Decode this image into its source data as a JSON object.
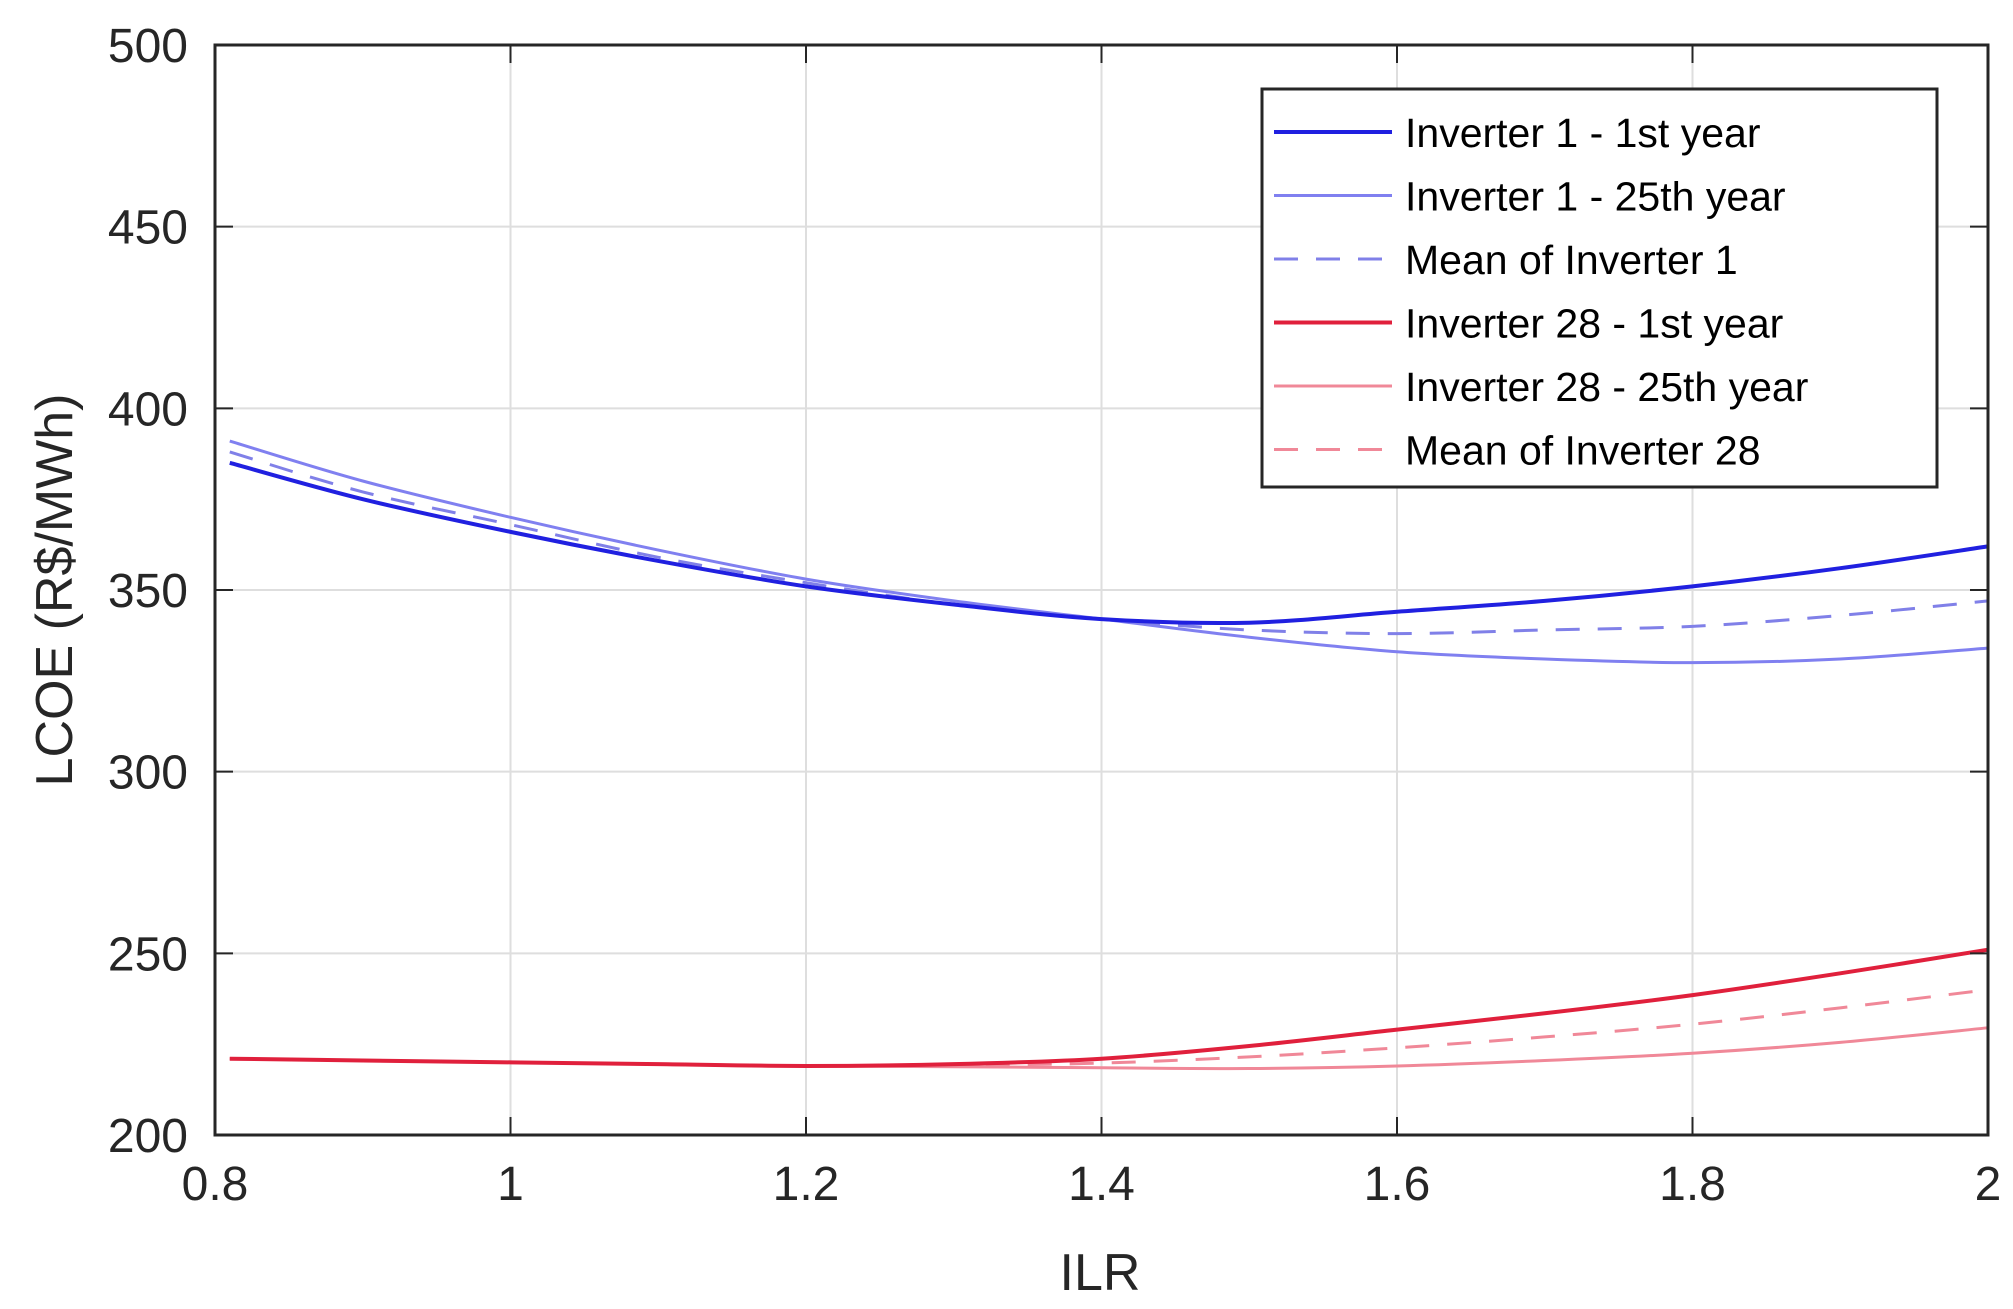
{
  "chart_data": {
    "type": "line",
    "title": "",
    "xlabel": "ILR",
    "ylabel": "LCOE (R$/MWh)",
    "xlim": [
      0.8,
      2.0
    ],
    "ylim": [
      200,
      500
    ],
    "xticks": [
      0.8,
      1.0,
      1.2,
      1.4,
      1.6,
      1.8,
      2.0
    ],
    "xtick_labels": [
      "0.8",
      "1",
      "1.2",
      "1.4",
      "1.6",
      "1.8",
      "2"
    ],
    "yticks": [
      200,
      250,
      300,
      350,
      400,
      450,
      500
    ],
    "ytick_labels": [
      "200",
      "250",
      "300",
      "350",
      "400",
      "450",
      "500"
    ],
    "grid": true,
    "legend_position": "upper right",
    "x": [
      0.81,
      0.9,
      1.0,
      1.1,
      1.2,
      1.3,
      1.4,
      1.5,
      1.6,
      1.7,
      1.8,
      1.9,
      2.0
    ],
    "series": [
      {
        "name": "Inverter 1 - 1st year",
        "color": "#2020e0",
        "style": "solid",
        "width": 4,
        "values": [
          385,
          375,
          366,
          358,
          351,
          346,
          342,
          341,
          344,
          347,
          351,
          356,
          362
        ]
      },
      {
        "name": "Inverter 1 - 25th year",
        "color": "#8080f0",
        "style": "solid",
        "width": 3,
        "values": [
          391,
          380,
          370,
          361,
          353,
          347,
          342,
          337,
          333,
          331,
          330,
          331,
          334
        ]
      },
      {
        "name": "Mean of Inverter 1",
        "color": "#8080e8",
        "style": "dashed",
        "width": 3,
        "values": [
          388,
          377,
          368,
          359,
          352,
          346,
          342,
          339,
          338,
          339,
          340,
          343,
          347
        ]
      },
      {
        "name": "Inverter 28 - 1st year",
        "color": "#e0203c",
        "style": "solid",
        "width": 4,
        "values": [
          221,
          220.5,
          220,
          219.5,
          219,
          219.5,
          221,
          224.5,
          229,
          233.5,
          238.5,
          244.5,
          251
        ]
      },
      {
        "name": "Inverter 28 - 25th year",
        "color": "#f08898",
        "style": "solid",
        "width": 3,
        "values": [
          221,
          220.5,
          220,
          219.5,
          219,
          218.8,
          218.5,
          218.3,
          219,
          220.5,
          222.5,
          225.5,
          229.5
        ]
      },
      {
        "name": "Mean of Inverter 28",
        "color": "#f08898",
        "style": "dashed",
        "width": 3,
        "values": [
          221,
          220.5,
          220,
          219.5,
          219,
          219.2,
          219.8,
          221.5,
          224,
          227,
          230.5,
          235,
          240
        ]
      }
    ]
  }
}
